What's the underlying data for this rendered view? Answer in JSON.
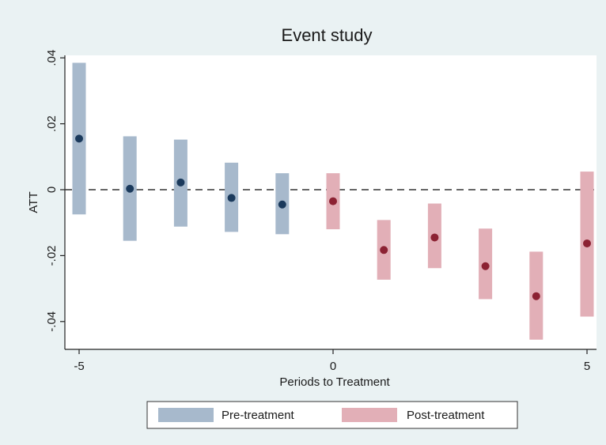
{
  "chart_data": {
    "type": "scatter",
    "title": "Event study",
    "xlabel": "Periods to Treatment",
    "ylabel": "ATT",
    "xlim": [
      -5,
      5
    ],
    "ylim": [
      -0.045,
      0.04
    ],
    "x_ticks": [
      -5,
      0,
      5
    ],
    "x_tick_labels": [
      "-5",
      "0",
      "5"
    ],
    "y_ticks": [
      0.04,
      0.02,
      0,
      -0.02,
      -0.04
    ],
    "y_tick_labels": [
      ".04",
      ".02",
      "0",
      "-.02",
      "-.04"
    ],
    "reference_line": {
      "y": 0,
      "style": "dashed"
    },
    "grid": false,
    "legend_position": "bottom",
    "series": [
      {
        "name": "Pre-treatment",
        "marker_color": "#1b3a5c",
        "ci_color": "#a7b9cc",
        "points": [
          {
            "x": -5,
            "y": 0.0155,
            "ci_low": -0.0075,
            "ci_high": 0.0385
          },
          {
            "x": -4,
            "y": 0.0003,
            "ci_low": -0.0155,
            "ci_high": 0.0162
          },
          {
            "x": -3,
            "y": 0.0022,
            "ci_low": -0.0112,
            "ci_high": 0.0152
          },
          {
            "x": -2,
            "y": -0.0025,
            "ci_low": -0.0128,
            "ci_high": 0.0082
          },
          {
            "x": -1,
            "y": -0.0045,
            "ci_low": -0.0135,
            "ci_high": 0.005
          }
        ]
      },
      {
        "name": "Post-treatment",
        "marker_color": "#8c2233",
        "ci_color": "#e2afb7",
        "points": [
          {
            "x": 0,
            "y": -0.0035,
            "ci_low": -0.012,
            "ci_high": 0.005
          },
          {
            "x": 1,
            "y": -0.0183,
            "ci_low": -0.0273,
            "ci_high": -0.0092
          },
          {
            "x": 2,
            "y": -0.0145,
            "ci_low": -0.0238,
            "ci_high": -0.0042
          },
          {
            "x": 3,
            "y": -0.0232,
            "ci_low": -0.0332,
            "ci_high": -0.0118
          },
          {
            "x": 4,
            "y": -0.0323,
            "ci_low": -0.0455,
            "ci_high": -0.0188
          },
          {
            "x": 5,
            "y": -0.0163,
            "ci_low": -0.0385,
            "ci_high": 0.0055
          }
        ]
      }
    ]
  }
}
